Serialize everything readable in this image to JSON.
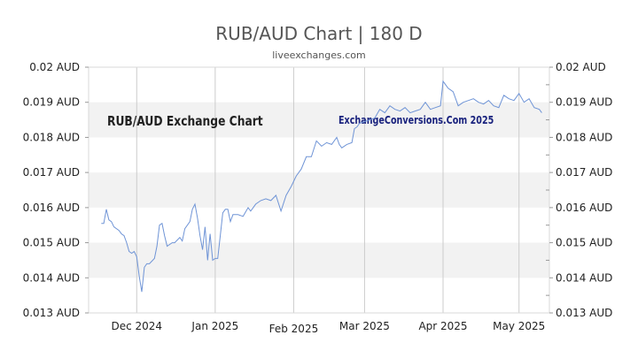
{
  "title": "RUB/AUD Chart | 180 D",
  "subtitle": "liveexchanges.com",
  "chart_data": {
    "type": "line",
    "watermark_left": "RUB/AUD Exchange Chart",
    "watermark_right": "ExchangeConversions.Com 2025",
    "ylim": [
      0.013,
      0.02
    ],
    "y_ticks": [
      {
        "value": 0.02,
        "label": "0.02 AUD"
      },
      {
        "value": 0.019,
        "label": "0.019 AUD"
      },
      {
        "value": 0.018,
        "label": "0.018 AUD"
      },
      {
        "value": 0.017,
        "label": "0.017 AUD"
      },
      {
        "value": 0.016,
        "label": "0.016 AUD"
      },
      {
        "value": 0.015,
        "label": "0.015 AUD"
      },
      {
        "value": 0.014,
        "label": "0.014 AUD"
      },
      {
        "value": 0.013,
        "label": "0.013 AUD"
      }
    ],
    "x_range": [
      "2024-11-12",
      "2025-05-13"
    ],
    "x_ticks": [
      {
        "date": "2024-12-01",
        "label": "Dec 2024"
      },
      {
        "date": "2025-01-01",
        "label": "Jan 2025"
      },
      {
        "date": "2025-02-01",
        "label": "Feb 2025"
      },
      {
        "date": "2025-03-01",
        "label": "Mar 2025"
      },
      {
        "date": "2025-04-01",
        "label": "Apr 2025"
      },
      {
        "date": "2025-05-01",
        "label": "May 2025"
      }
    ],
    "grid": true,
    "band_color": "#f2f2f2",
    "line_color": "#6f94d6",
    "series": [
      {
        "x": [
          "2024-11-17",
          "2024-11-18",
          "2024-11-19",
          "2024-11-20",
          "2024-11-21",
          "2024-11-22",
          "2024-11-24",
          "2024-11-25",
          "2024-11-26",
          "2024-11-27",
          "2024-11-28",
          "2024-11-29",
          "2024-11-30",
          "2024-12-01",
          "2024-12-02",
          "2024-12-03",
          "2024-12-04",
          "2024-12-05",
          "2024-12-06",
          "2024-12-08",
          "2024-12-09",
          "2024-12-10",
          "2024-12-11",
          "2024-12-12",
          "2024-12-13",
          "2024-12-15",
          "2024-12-16",
          "2024-12-18",
          "2024-12-19",
          "2024-12-20",
          "2024-12-22",
          "2024-12-23",
          "2024-12-24",
          "2024-12-25",
          "2024-12-26",
          "2024-12-27",
          "2024-12-28",
          "2024-12-29",
          "2024-12-30",
          "2024-12-31",
          "2025-01-01",
          "2025-01-02",
          "2025-01-03",
          "2025-01-04",
          "2025-01-05",
          "2025-01-06",
          "2025-01-07",
          "2025-01-08",
          "2025-01-10",
          "2025-01-12",
          "2025-01-14",
          "2025-01-15",
          "2025-01-17",
          "2025-01-19",
          "2025-01-21",
          "2025-01-23",
          "2025-01-25",
          "2025-01-27",
          "2025-01-29",
          "2025-01-31",
          "2025-02-02",
          "2025-02-04",
          "2025-02-06",
          "2025-02-08",
          "2025-02-10",
          "2025-02-12",
          "2025-02-14",
          "2025-02-16",
          "2025-02-18",
          "2025-02-19",
          "2025-02-20",
          "2025-02-22",
          "2025-02-24",
          "2025-02-25",
          "2025-02-26",
          "2025-02-27",
          "2025-03-01",
          "2025-03-03",
          "2025-03-05",
          "2025-03-07",
          "2025-03-09",
          "2025-03-11",
          "2025-03-13",
          "2025-03-15",
          "2025-03-17",
          "2025-03-19",
          "2025-03-21",
          "2025-03-23",
          "2025-03-25",
          "2025-03-27",
          "2025-03-29",
          "2025-03-31",
          "2025-04-01",
          "2025-04-03",
          "2025-04-05",
          "2025-04-07",
          "2025-04-09",
          "2025-04-11",
          "2025-04-13",
          "2025-04-15",
          "2025-04-17",
          "2025-04-19",
          "2025-04-21",
          "2025-04-23",
          "2025-04-25",
          "2025-04-27",
          "2025-04-29",
          "2025-05-01",
          "2025-05-03",
          "2025-05-05",
          "2025-05-07",
          "2025-05-09",
          "2025-05-10"
        ],
        "y": [
          0.01555,
          0.01555,
          0.01595,
          0.01565,
          0.0156,
          0.01545,
          0.01535,
          0.01525,
          0.0152,
          0.015,
          0.01475,
          0.0147,
          0.01475,
          0.0146,
          0.01405,
          0.0136,
          0.0143,
          0.0144,
          0.0144,
          0.01455,
          0.0149,
          0.0155,
          0.01555,
          0.0152,
          0.0149,
          0.015,
          0.015,
          0.01515,
          0.01505,
          0.0154,
          0.0156,
          0.01595,
          0.0161,
          0.0157,
          0.0152,
          0.0148,
          0.01545,
          0.0145,
          0.01525,
          0.0145,
          0.01455,
          0.01455,
          0.0152,
          0.01585,
          0.01595,
          0.01595,
          0.0156,
          0.0158,
          0.0158,
          0.01575,
          0.016,
          0.0159,
          0.0161,
          0.0162,
          0.01625,
          0.0162,
          0.01635,
          0.0159,
          0.01635,
          0.0166,
          0.0169,
          0.0171,
          0.01745,
          0.01745,
          0.0179,
          0.01775,
          0.01785,
          0.0178,
          0.018,
          0.0178,
          0.0177,
          0.0178,
          0.01785,
          0.01825,
          0.0183,
          0.0184,
          0.01845,
          0.0185,
          0.01855,
          0.0188,
          0.0187,
          0.0189,
          0.0188,
          0.01875,
          0.01885,
          0.0187,
          0.01875,
          0.0188,
          0.019,
          0.0188,
          0.01885,
          0.0189,
          0.0196,
          0.0194,
          0.0193,
          0.0189,
          0.019,
          0.01905,
          0.0191,
          0.019,
          0.01895,
          0.01905,
          0.0189,
          0.01885,
          0.0192,
          0.0191,
          0.01905,
          0.01925,
          0.019,
          0.0191,
          0.01885,
          0.0188,
          0.0187
        ]
      }
    ]
  }
}
